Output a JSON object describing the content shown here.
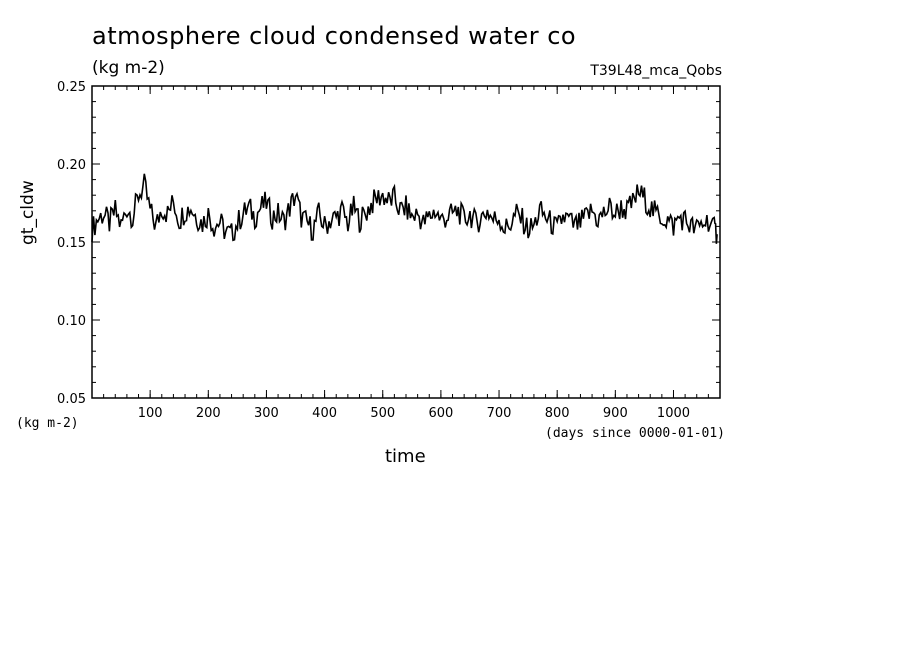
{
  "chart_data": {
    "type": "line",
    "title": "atmosphere cloud condensed water co",
    "subtitle": "(kg m-2)",
    "run_label": "T39L48_mca_Qobs",
    "xlabel": "time",
    "xunits": "(days since 0000-01-01)",
    "ylabel": "gt_cldw",
    "yunits": "(kg m-2)",
    "xlim": [
      0,
      1080
    ],
    "ylim": [
      0.05,
      0.25
    ],
    "xticks": [
      100,
      200,
      300,
      400,
      500,
      600,
      700,
      800,
      900,
      1000
    ],
    "xtick_labels": [
      "100",
      "200",
      "300",
      "400",
      "500",
      "600",
      "700",
      "800",
      "900",
      "1000"
    ],
    "yticks": [
      0.05,
      0.1,
      0.15,
      0.2,
      0.25
    ],
    "ytick_labels": [
      "0.05",
      "0.10",
      "0.15",
      "0.20",
      "0.25"
    ],
    "grid": false,
    "line_color": "#000000",
    "series": [
      {
        "x": [
          0,
          10,
          20,
          30,
          40,
          50,
          60,
          70,
          80,
          90,
          100,
          110,
          120,
          130,
          140,
          150,
          160,
          170,
          180,
          190,
          200,
          210,
          220,
          230,
          240,
          250,
          260,
          270,
          280,
          290,
          300,
          310,
          320,
          330,
          340,
          350,
          360,
          370,
          380,
          390,
          400,
          410,
          420,
          430,
          440,
          450,
          460,
          470,
          480,
          490,
          500,
          510,
          520,
          530,
          540,
          550,
          560,
          570,
          580,
          590,
          600,
          610,
          620,
          630,
          640,
          650,
          660,
          670,
          680,
          690,
          700,
          710,
          720,
          730,
          740,
          750,
          760,
          770,
          780,
          790,
          800,
          810,
          820,
          830,
          840,
          850,
          860,
          870,
          880,
          890,
          900,
          910,
          920,
          930,
          940,
          950,
          960,
          970,
          980,
          990,
          1000,
          1010,
          1020,
          1030,
          1040,
          1050,
          1060,
          1070,
          1075
        ],
        "values": [
          0.158,
          0.165,
          0.168,
          0.162,
          0.17,
          0.16,
          0.172,
          0.166,
          0.18,
          0.186,
          0.17,
          0.16,
          0.172,
          0.168,
          0.176,
          0.164,
          0.17,
          0.172,
          0.166,
          0.162,
          0.168,
          0.16,
          0.163,
          0.156,
          0.155,
          0.162,
          0.168,
          0.172,
          0.166,
          0.172,
          0.175,
          0.166,
          0.168,
          0.163,
          0.172,
          0.18,
          0.166,
          0.162,
          0.158,
          0.168,
          0.16,
          0.164,
          0.166,
          0.17,
          0.162,
          0.172,
          0.164,
          0.168,
          0.174,
          0.178,
          0.18,
          0.176,
          0.178,
          0.17,
          0.172,
          0.166,
          0.168,
          0.162,
          0.166,
          0.17,
          0.164,
          0.166,
          0.168,
          0.17,
          0.164,
          0.168,
          0.162,
          0.166,
          0.17,
          0.164,
          0.166,
          0.158,
          0.162,
          0.168,
          0.164,
          0.158,
          0.16,
          0.17,
          0.166,
          0.162,
          0.158,
          0.166,
          0.164,
          0.16,
          0.162,
          0.166,
          0.17,
          0.164,
          0.168,
          0.172,
          0.168,
          0.172,
          0.17,
          0.175,
          0.182,
          0.178,
          0.172,
          0.168,
          0.166,
          0.164,
          0.16,
          0.166,
          0.164,
          0.16,
          0.158,
          0.162,
          0.164,
          0.158,
          0.155
        ]
      }
    ]
  }
}
